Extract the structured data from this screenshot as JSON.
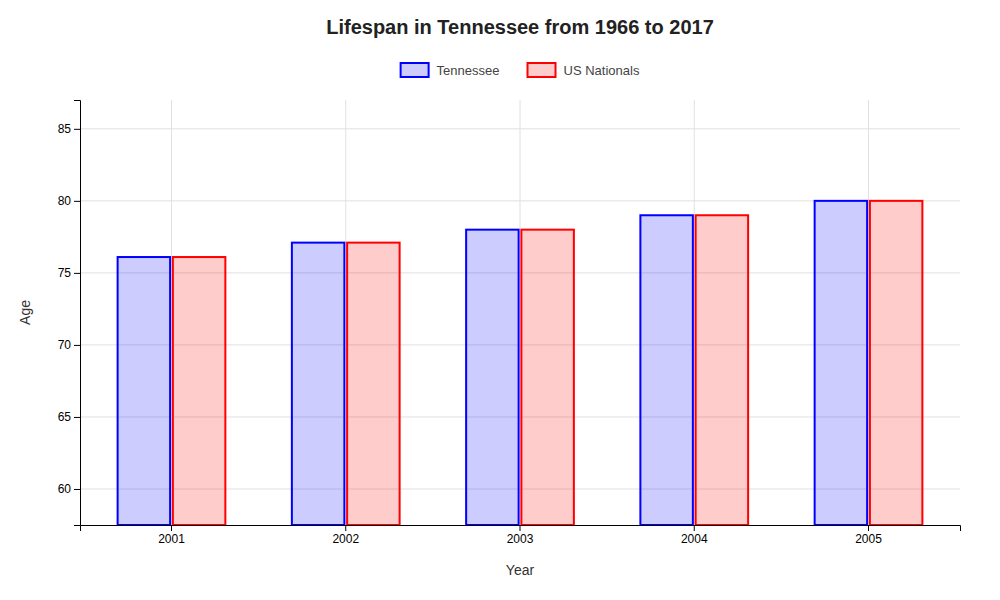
{
  "chart_data": {
    "type": "bar",
    "title": "Lifespan in Tennessee from 1966 to 2017",
    "xlabel": "Year",
    "ylabel": "Age",
    "categories": [
      "2001",
      "2002",
      "2003",
      "2004",
      "2005"
    ],
    "series": [
      {
        "name": "Tennessee",
        "color": "#0000ff",
        "values": [
          76.1,
          77.1,
          78.0,
          79.0,
          80.0
        ]
      },
      {
        "name": "US Nationals",
        "color": "#ff0000",
        "values": [
          76.1,
          77.1,
          78.0,
          79.0,
          80.0
        ]
      }
    ],
    "ylim": [
      57.5,
      87
    ],
    "yticks": [
      60,
      65,
      70,
      75,
      80,
      85
    ],
    "grid": true,
    "legend": "top"
  }
}
